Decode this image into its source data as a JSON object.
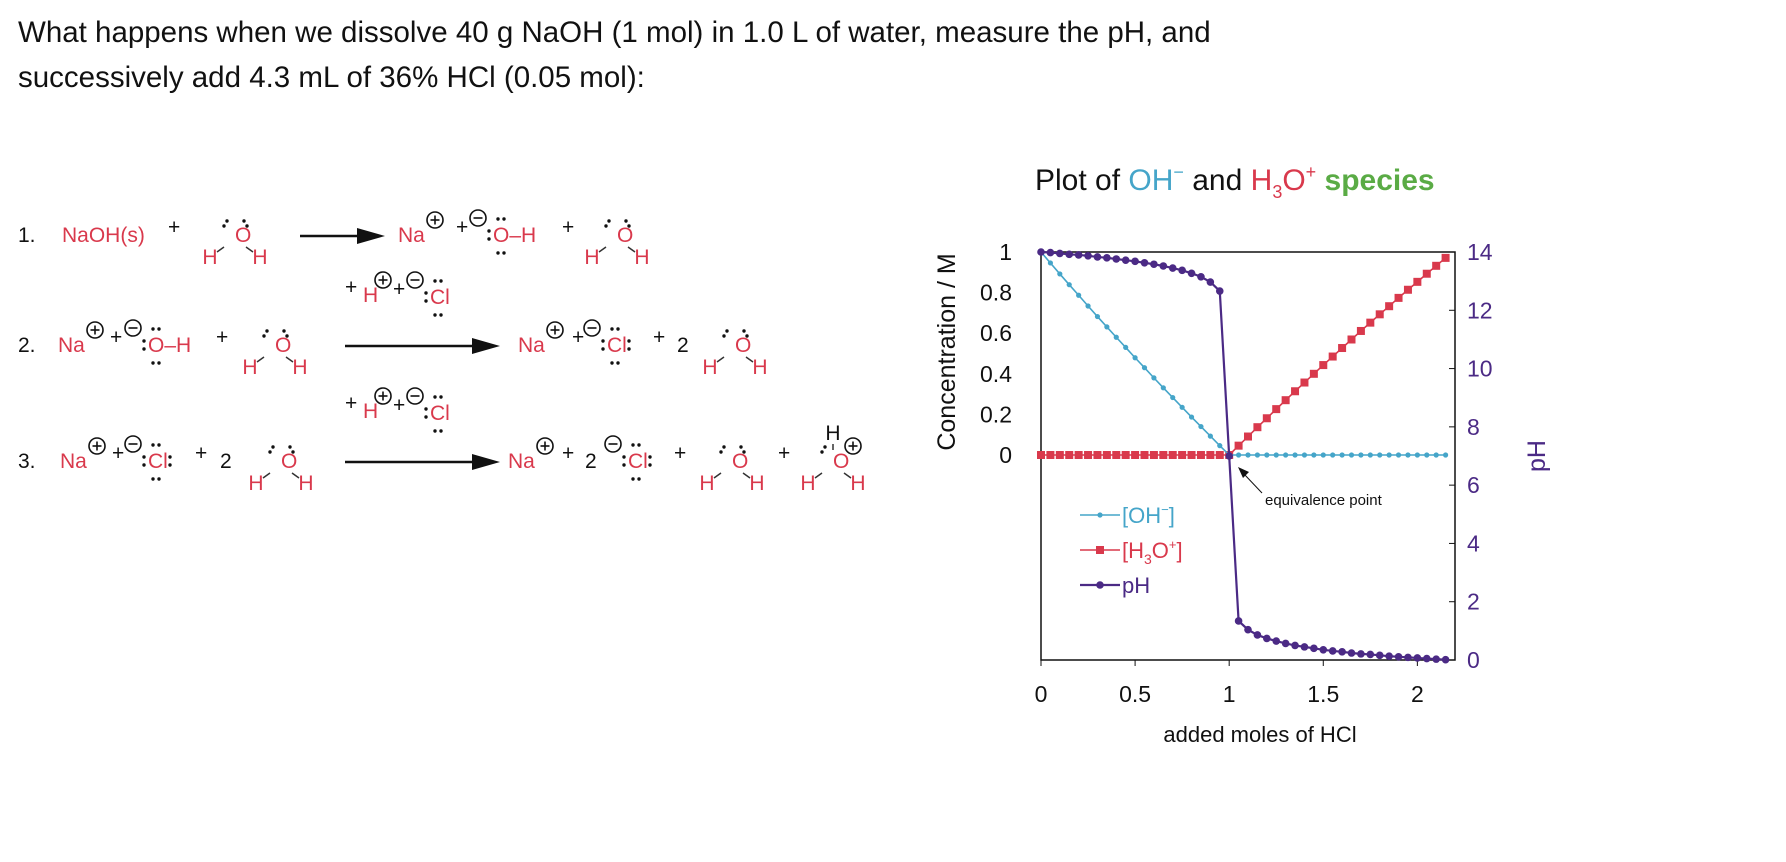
{
  "question": {
    "line1": "What happens when we dissolve 40 g NaOH (1 mol) in 1.0 L of water, measure the pH, and",
    "line2": "successively add 4.3 mL of 36% HCl (0.05 mol):"
  },
  "reactions": [
    {
      "tokens": [
        {
          "t": "number",
          "text": "1."
        },
        {
          "t": "formula",
          "text": "NaOH(s)"
        },
        {
          "t": "op",
          "text": "+"
        },
        {
          "t": "water",
          "O": "O",
          "H": "H"
        },
        {
          "t": "arrow"
        },
        {
          "t": "cation",
          "text": "Na"
        },
        {
          "t": "op",
          "text": "+"
        },
        {
          "t": "hydroxide",
          "text": "O–H"
        },
        {
          "t": "op",
          "text": "+"
        },
        {
          "t": "water",
          "O": "O",
          "H": "H"
        }
      ]
    },
    {
      "tokens": [
        {
          "t": "number",
          "text": "2."
        },
        {
          "t": "cation",
          "text": "Na"
        },
        {
          "t": "op",
          "text": "+"
        },
        {
          "t": "hydroxide",
          "text": "O–H"
        },
        {
          "t": "op",
          "text": "+"
        },
        {
          "t": "water",
          "O": "O",
          "H": "H"
        },
        {
          "t": "arrow",
          "reagent": {
            "plus": "+",
            "H": "H",
            "Cl": "Cl"
          }
        },
        {
          "t": "cation",
          "text": "Na"
        },
        {
          "t": "op",
          "text": "+"
        },
        {
          "t": "chloride",
          "text": "Cl"
        },
        {
          "t": "op",
          "text": "+"
        },
        {
          "t": "op",
          "text": "2"
        },
        {
          "t": "water",
          "O": "O",
          "H": "H"
        }
      ]
    },
    {
      "tokens": [
        {
          "t": "number",
          "text": "3."
        },
        {
          "t": "cation",
          "text": "Na"
        },
        {
          "t": "op",
          "text": "+"
        },
        {
          "t": "chloride",
          "text": "Cl"
        },
        {
          "t": "op",
          "text": "+"
        },
        {
          "t": "op",
          "text": "2"
        },
        {
          "t": "water",
          "O": "O",
          "H": "H"
        },
        {
          "t": "arrow",
          "reagent": {
            "plus": "+",
            "H": "H",
            "Cl": "Cl"
          }
        },
        {
          "t": "cation",
          "text": "Na"
        },
        {
          "t": "op",
          "text": "+"
        },
        {
          "t": "op",
          "text": "2"
        },
        {
          "t": "chloride",
          "text": "Cl"
        },
        {
          "t": "op",
          "text": "+"
        },
        {
          "t": "water",
          "O": "O",
          "H": "H"
        },
        {
          "t": "op",
          "text": "+"
        },
        {
          "t": "hydronium",
          "O": "O",
          "H": "H"
        }
      ]
    }
  ],
  "colors": {
    "chem_red": "#d9394c",
    "oh_blue": "#45a5c9",
    "h3o_red": "#d9394c",
    "ph_purple": "#4b2a85",
    "species_green": "#5aab45"
  },
  "chart_data": {
    "type": "line",
    "title": {
      "prefix": "Plot of ",
      "oh": "OH",
      "oh_sup": "−",
      "and": " and ",
      "h3o_a": "H",
      "h3o_sub": "3",
      "h3o_b": "O",
      "h3o_sup": "+",
      "species": " species"
    },
    "xlabel": "added moles of HCl",
    "ylabel": "Concentration / M",
    "y2label": "pH",
    "xlim": [
      0,
      2.2
    ],
    "ylim": [
      0,
      1
    ],
    "y2lim": [
      0,
      14
    ],
    "x_ticks": [
      "0",
      "0.5",
      "1",
      "1.5",
      "2"
    ],
    "x_tick_values": [
      0,
      0.5,
      1,
      1.5,
      2
    ],
    "y_ticks": [
      "0",
      "0.2",
      "0.4",
      "0.6",
      "0.8",
      "1"
    ],
    "y_tick_values": [
      0,
      0.2,
      0.4,
      0.6,
      0.8,
      1
    ],
    "y2_ticks": [
      "0",
      "2",
      "4",
      "6",
      "8",
      "10",
      "12",
      "14"
    ],
    "y2_tick_values": [
      0,
      2,
      4,
      6,
      8,
      10,
      12,
      14
    ],
    "legend_placement": "lower-left",
    "annotation": {
      "text": "equivalence point",
      "x": 1,
      "y": 0
    },
    "x": [
      0,
      0.05,
      0.1,
      0.15,
      0.2,
      0.25,
      0.3,
      0.35,
      0.4,
      0.45,
      0.5,
      0.55,
      0.6,
      0.65,
      0.7,
      0.75,
      0.8,
      0.85,
      0.9,
      0.95,
      1,
      1.05,
      1.1,
      1.15,
      1.2,
      1.25,
      1.3,
      1.35,
      1.4,
      1.45,
      1.5,
      1.55,
      1.6,
      1.65,
      1.7,
      1.75,
      1.8,
      1.85,
      1.9,
      1.95,
      2,
      2.05,
      2.1,
      2.15
    ],
    "series": [
      {
        "name": "[OH⁻]",
        "legend": {
          "a": "[OH",
          "sup": "−",
          "b": "]"
        },
        "axis": "left",
        "marker": "diamond",
        "values": [
          1,
          0.946,
          0.892,
          0.839,
          0.787,
          0.734,
          0.682,
          0.631,
          0.58,
          0.53,
          0.479,
          0.43,
          0.38,
          0.331,
          0.283,
          0.235,
          0.187,
          0.14,
          0.093,
          0.046,
          0,
          0,
          0,
          0,
          0,
          0,
          0,
          0,
          0,
          0,
          0,
          0,
          0,
          0,
          0,
          0,
          0,
          0,
          0,
          0,
          0,
          0,
          0,
          0
        ]
      },
      {
        "name": "[H₃O⁺]",
        "legend": {
          "a": "[H",
          "sub": "3",
          "b": "O",
          "sup": "+",
          "c": "]"
        },
        "axis": "left",
        "marker": "square",
        "values": [
          0,
          0,
          0,
          0,
          0,
          0,
          0,
          0,
          0,
          0,
          0,
          0,
          0,
          0,
          0,
          0,
          0,
          0,
          0,
          0,
          0,
          0.046,
          0.091,
          0.137,
          0.181,
          0.226,
          0.27,
          0.314,
          0.357,
          0.4,
          0.443,
          0.485,
          0.527,
          0.569,
          0.611,
          0.652,
          0.693,
          0.733,
          0.774,
          0.814,
          0.853,
          0.893,
          0.932,
          0.971
        ]
      },
      {
        "name": "pH",
        "legend": {
          "a": "pH"
        },
        "axis": "right",
        "marker": "circle",
        "values": [
          14,
          13.98,
          13.95,
          13.92,
          13.9,
          13.87,
          13.83,
          13.8,
          13.76,
          13.72,
          13.68,
          13.63,
          13.58,
          13.52,
          13.45,
          13.37,
          13.27,
          13.15,
          12.97,
          12.66,
          7,
          1.34,
          1.04,
          0.86,
          0.74,
          0.65,
          0.57,
          0.5,
          0.45,
          0.4,
          0.35,
          0.31,
          0.28,
          0.24,
          0.21,
          0.19,
          0.16,
          0.13,
          0.11,
          0.09,
          0.07,
          0.05,
          0.03,
          0.01
        ]
      }
    ]
  }
}
